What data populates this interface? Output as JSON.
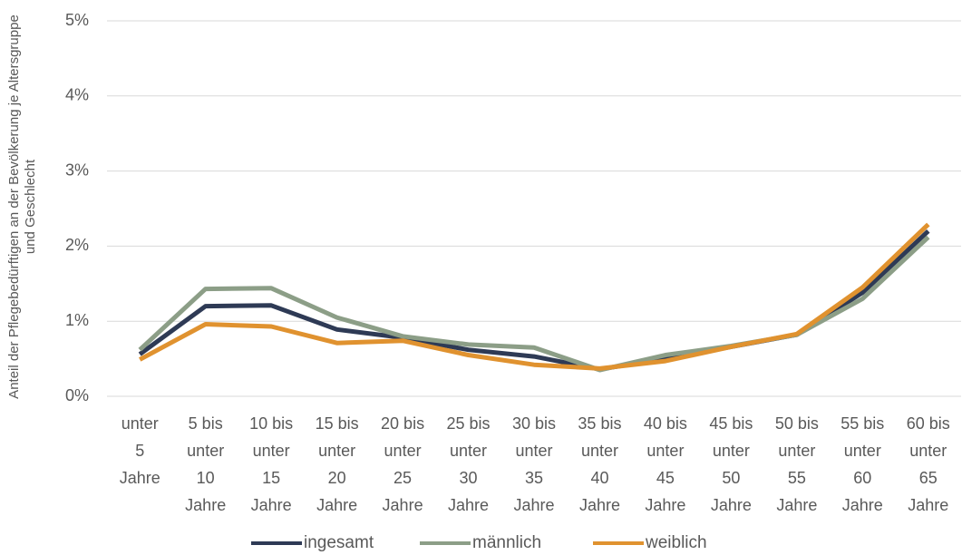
{
  "chart_data": {
    "type": "line",
    "y_label": "Anteil der Pflegebedürftigen an der  Bevölkerung je Altersgruppe und Geschlecht",
    "categories": [
      "unter 5 Jahre",
      "5 bis unter 10 Jahre",
      "10 bis unter 15 Jahre",
      "15 bis unter 20 Jahre",
      "20 bis unter 25 Jahre",
      "25 bis unter 30 Jahre",
      "30 bis unter 35 Jahre",
      "35 bis unter 40 Jahre",
      "40 bis unter 45 Jahre",
      "45 bis unter 50 Jahre",
      "50 bis unter 55 Jahre",
      "55 bis unter 60 Jahre",
      "60 bis unter 65 Jahre"
    ],
    "series": [
      {
        "name": "ingesamt",
        "color": "#2e3a55",
        "values": [
          0.56,
          1.2,
          1.21,
          0.89,
          0.78,
          0.62,
          0.53,
          0.36,
          0.5,
          0.66,
          0.82,
          1.38,
          2.2
        ]
      },
      {
        "name": "männlich",
        "color": "#8c9e87",
        "values": [
          0.62,
          1.43,
          1.44,
          1.05,
          0.8,
          0.69,
          0.65,
          0.35,
          0.55,
          0.67,
          0.82,
          1.3,
          2.12
        ]
      },
      {
        "name": "weiblich",
        "color": "#e0922f",
        "values": [
          0.49,
          0.96,
          0.93,
          0.71,
          0.74,
          0.55,
          0.42,
          0.37,
          0.47,
          0.66,
          0.83,
          1.45,
          2.29
        ]
      }
    ],
    "ylim": [
      0,
      5
    ],
    "yticks": [
      {
        "value": 0,
        "label": "0%"
      },
      {
        "value": 1,
        "label": "1%"
      },
      {
        "value": 2,
        "label": "2%"
      },
      {
        "value": 3,
        "label": "3%"
      },
      {
        "value": 4,
        "label": "4%"
      },
      {
        "value": 5,
        "label": "5%"
      }
    ],
    "grid": true,
    "legend": "bottom"
  }
}
